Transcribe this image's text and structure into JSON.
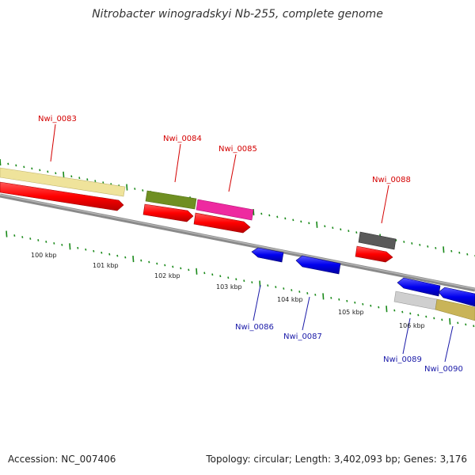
{
  "title": "Nitrobacter winogradskyi Nb-255, complete genome",
  "footer": {
    "accession": "Accession: NC_007406",
    "summary": "Topology: circular; Length: 3,402,093 bp; Genes: 3,176"
  },
  "ticks": [
    "100 kbp",
    "101 kbp",
    "102 kbp",
    "103 kbp",
    "104 kbp",
    "105 kbp",
    "106 kbp"
  ],
  "genes_forward": [
    {
      "id": "Nwi_0083",
      "cds_color": "#e8dc96"
    },
    {
      "id": "Nwi_0084",
      "cds_color": "#6b8e23"
    },
    {
      "id": "Nwi_0085",
      "cds_color": "#e8249a"
    },
    {
      "id": "Nwi_0088",
      "cds_color": "#555555"
    }
  ],
  "genes_reverse": [
    {
      "id": "Nwi_0086",
      "cds_color": "#0000ee"
    },
    {
      "id": "Nwi_0087",
      "cds_color": "#0000ee"
    },
    {
      "id": "Nwi_0089",
      "cds_color": "#c8c8c8"
    },
    {
      "id": "Nwi_0090",
      "cds_color": "#c9b458"
    }
  ],
  "colors": {
    "forward_gene": "#ff0000",
    "reverse_gene": "#0000ee",
    "backbone": "#808080",
    "tick": "#1a8a1a",
    "forward_label": "#d40000",
    "reverse_label": "#1a1aa8"
  }
}
